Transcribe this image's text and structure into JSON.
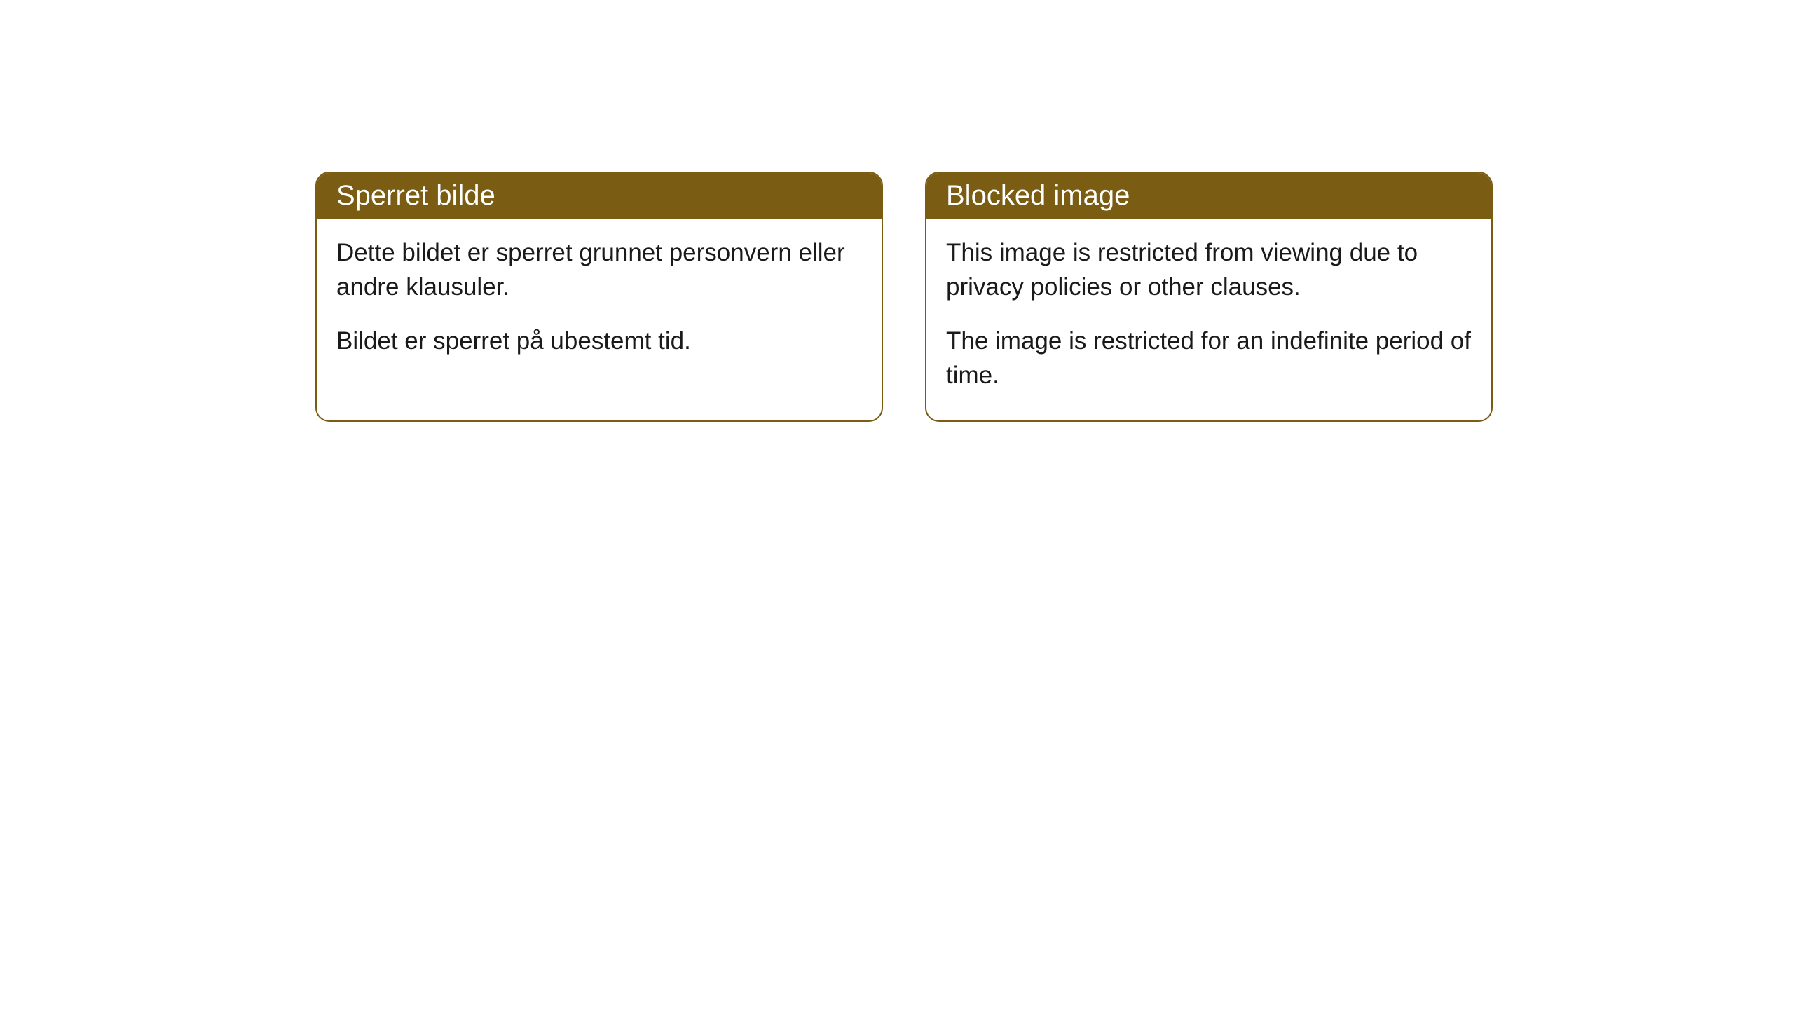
{
  "cards": [
    {
      "title": "Sperret bilde",
      "paragraph1": "Dette bildet er sperret grunnet personvern eller andre klausuler.",
      "paragraph2": "Bildet er sperret på ubestemt tid."
    },
    {
      "title": "Blocked image",
      "paragraph1": "This image is restricted from viewing due to privacy policies or other clauses.",
      "paragraph2": "The image is restricted for an indefinite period of time."
    }
  ],
  "styling": {
    "header_bg_color": "#7a5d13",
    "header_text_color": "#ffffff",
    "border_color": "#7a5d13",
    "body_text_color": "#1a1a1a",
    "page_bg_color": "#ffffff",
    "border_radius": 20,
    "title_fontsize": 40,
    "body_fontsize": 35
  }
}
